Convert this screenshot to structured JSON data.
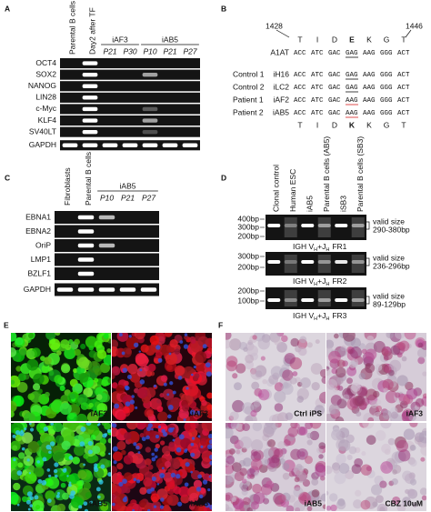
{
  "panels": {
    "a": {
      "label": "A",
      "lanes": [
        "Parental B cells",
        "Day2 after TF"
      ],
      "groups": [
        {
          "name": "iAF3",
          "passages": [
            "P21",
            "P30"
          ]
        },
        {
          "name": "iAB5",
          "passages": [
            "P10",
            "P21",
            "P27"
          ]
        }
      ],
      "genes": [
        "OCT4",
        "SOX2",
        "NANOG",
        "LIN28",
        "c-Myc",
        "KLF4",
        "SV40LT",
        "GAPDH"
      ]
    },
    "b": {
      "label": "B",
      "positions": [
        "1428",
        "1446"
      ],
      "amino_acids_top": [
        "T",
        "I",
        "D",
        "E",
        "K",
        "G",
        "T"
      ],
      "reference": {
        "name": "A1AT",
        "codons": [
          "ACC",
          "ATC",
          "GAC",
          "GAG",
          "AAG",
          "GGG",
          "ACT"
        ]
      },
      "rows": [
        {
          "group": "Control 1",
          "clone": "iH16",
          "codons": [
            "ACC",
            "ATC",
            "GAC",
            "GAG",
            "AAG",
            "GGG",
            "ACT"
          ]
        },
        {
          "group": "Control 2",
          "clone": "iLC2",
          "codons": [
            "ACC",
            "ATC",
            "GAC",
            "GAG",
            "AAG",
            "GGG",
            "ACT"
          ]
        },
        {
          "group": "Patient 1",
          "clone": "iAF2",
          "codons": [
            "ACC",
            "ATC",
            "GAC",
            "AAG",
            "AAG",
            "GGG",
            "ACT"
          ]
        },
        {
          "group": "Patient 2",
          "clone": "iAB5",
          "codons": [
            "ACC",
            "ATC",
            "GAC",
            "AAG",
            "AAG",
            "GGG",
            "ACT"
          ]
        }
      ],
      "amino_acids_bottom": [
        "T",
        "I",
        "D",
        "K",
        "K",
        "G",
        "T"
      ]
    },
    "c": {
      "label": "C",
      "lanes": [
        "Fibroblasts",
        "Parental B cells"
      ],
      "groups": [
        {
          "name": "iAB5",
          "passages": [
            "P10",
            "P21",
            "P27"
          ]
        }
      ],
      "genes": [
        "EBNA1",
        "EBNA2",
        "OriP",
        "LMP1",
        "BZLF1",
        "GAPDH"
      ]
    },
    "d": {
      "label": "D",
      "lanes": [
        "Clonal control",
        "Human ESC",
        "iAB5",
        "Parental B cells (AB5)",
        "iSB3",
        "Parental B cells (SB3)"
      ],
      "gels": [
        {
          "ladder": [
            "400bp",
            "300bp",
            "200bp"
          ],
          "caption": [
            "IGH V",
            "H",
            "+J",
            "H",
            "FR1"
          ],
          "note": "valid size",
          "range": "290-380bp"
        },
        {
          "ladder": [
            "300bp",
            "200bp"
          ],
          "caption": [
            "IGH V",
            "H",
            "+J",
            "H",
            "FR2"
          ],
          "note": "valid size",
          "range": "236-296bp"
        },
        {
          "ladder": [
            "200bp",
            "100bp"
          ],
          "caption": [
            "IGH V",
            "H",
            "+J",
            "H",
            "FR3"
          ],
          "note": "valid size",
          "range": "89-129bp"
        }
      ]
    },
    "e": {
      "label": "E",
      "images": [
        "iAF3",
        "iAF3",
        "iAB5",
        "iAB5"
      ]
    },
    "f": {
      "label": "F",
      "images": [
        "Ctrl iPS",
        "iAF3",
        "iAB5",
        "CBZ 10uM"
      ]
    }
  }
}
